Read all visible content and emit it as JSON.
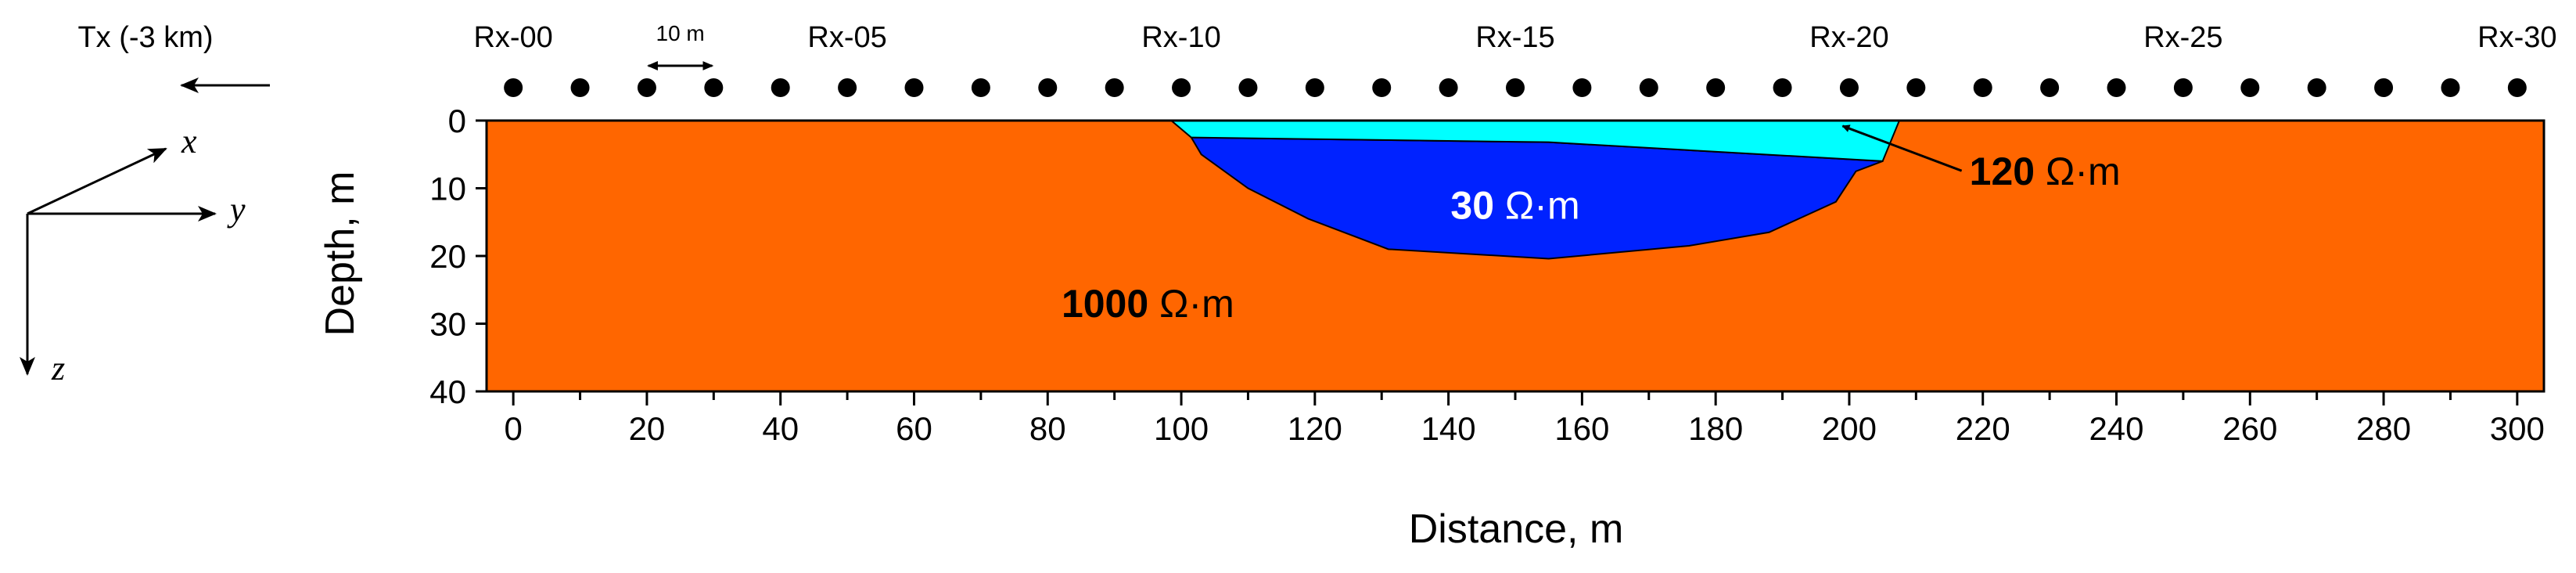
{
  "transmitter_label": "Tx (-3 km)",
  "spacing_label": "10 m",
  "receivers": {
    "count": 31,
    "spacing_m": 10,
    "start_m": 0,
    "labels": [
      "Rx-00",
      "Rx-05",
      "Rx-10",
      "Rx-15",
      "Rx-20",
      "Rx-25",
      "Rx-30"
    ],
    "label_positions_m": [
      0,
      50,
      100,
      150,
      200,
      250,
      300
    ]
  },
  "axes_symbols": {
    "x": "x",
    "y": "y",
    "z": "z"
  },
  "x_axis": {
    "label": "Distance, m",
    "range": [
      -4,
      304
    ],
    "ticks": [
      0,
      10,
      20,
      30,
      40,
      50,
      60,
      70,
      80,
      90,
      100,
      110,
      120,
      130,
      140,
      150,
      160,
      170,
      180,
      190,
      200,
      210,
      220,
      230,
      240,
      250,
      260,
      270,
      280,
      290,
      300
    ],
    "tick_labels": [
      "0",
      "20",
      "40",
      "60",
      "80",
      "100",
      "120",
      "140",
      "160",
      "180",
      "200",
      "220",
      "240",
      "260",
      "280",
      "300"
    ],
    "tick_label_values": [
      0,
      20,
      40,
      60,
      80,
      100,
      120,
      140,
      160,
      180,
      200,
      220,
      240,
      260,
      280,
      300
    ]
  },
  "y_axis": {
    "label": "Depth, m",
    "range": [
      0,
      40
    ],
    "tick_labels": [
      "0",
      "10",
      "20",
      "30",
      "40"
    ],
    "tick_label_values": [
      0,
      10,
      20,
      30,
      40
    ]
  },
  "layers": {
    "background": {
      "label_value": "1000",
      "label_unit": "Ω·m",
      "color": "#ff6600",
      "label_at": [
        95,
        29
      ]
    },
    "conductor": {
      "label_value": "30",
      "label_unit": "Ω·m",
      "color": "#0022ff",
      "label_at": [
        150,
        14.5
      ],
      "outline": [
        [
          101.5,
          2.5
        ],
        [
          155,
          3.2
        ],
        [
          205,
          6
        ],
        [
          201,
          7.5
        ],
        [
          198,
          12
        ],
        [
          188,
          16.5
        ],
        [
          176,
          18.5
        ],
        [
          155,
          20.4
        ],
        [
          131,
          19
        ],
        [
          119,
          14.5
        ],
        [
          110,
          10
        ],
        [
          103,
          5
        ]
      ]
    },
    "cover": {
      "label_value": "120",
      "label_unit": "Ω·m",
      "color": "#00ffff",
      "label_at": [
        218,
        9.5
      ],
      "arrow_tip": [
        199,
        0.8
      ],
      "outline": [
        [
          98.5,
          0
        ],
        [
          207.5,
          0
        ],
        [
          205,
          6
        ],
        [
          155,
          3.2
        ],
        [
          101.5,
          2.5
        ]
      ]
    }
  }
}
